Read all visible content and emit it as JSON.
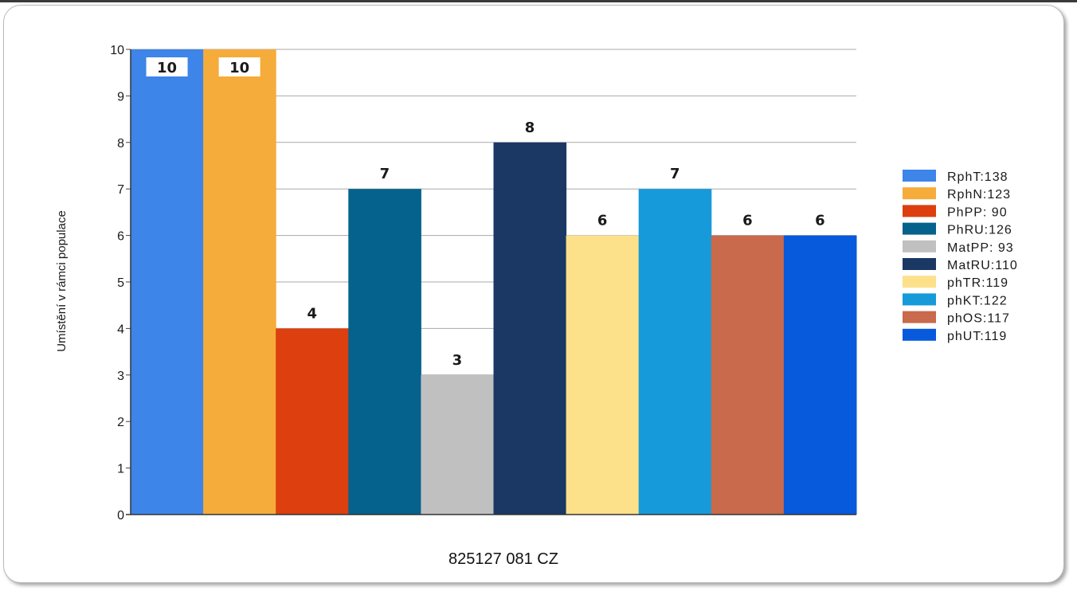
{
  "chart_data": {
    "type": "bar",
    "title": "",
    "xlabel": "825127 081 CZ",
    "ylabel": "Umístění v rámci populace",
    "ylim": [
      0,
      10
    ],
    "yticks": [
      "0",
      "1",
      "2",
      "3",
      "4",
      "5",
      "6",
      "7",
      "8",
      "9",
      "10"
    ],
    "grid": true,
    "legend_position": "right",
    "series": [
      {
        "name": "RphT:138",
        "value": 10,
        "label": "10",
        "color": "#3d85e8"
      },
      {
        "name": "RphN:123",
        "value": 10,
        "label": "10",
        "color": "#f5ac3b"
      },
      {
        "name": "PhPP: 90",
        "value": 4,
        "label": "4",
        "color": "#dd3f0e"
      },
      {
        "name": "PhRU:126",
        "value": 7,
        "label": "7",
        "color": "#05628c"
      },
      {
        "name": "MatPP: 93",
        "value": 3,
        "label": "3",
        "color": "#c0c0c0"
      },
      {
        "name": "MatRU:110",
        "value": 8,
        "label": "8",
        "color": "#1b3864"
      },
      {
        "name": "phTR:119",
        "value": 6,
        "label": "6",
        "color": "#fde08a"
      },
      {
        "name": "phKT:122",
        "value": 7,
        "label": "7",
        "color": "#169ad9"
      },
      {
        "name": "phOS:117",
        "value": 6,
        "label": "6",
        "color": "#c86a4b"
      },
      {
        "name": "phUT:119",
        "value": 6,
        "label": "6",
        "color": "#065adb"
      }
    ]
  }
}
